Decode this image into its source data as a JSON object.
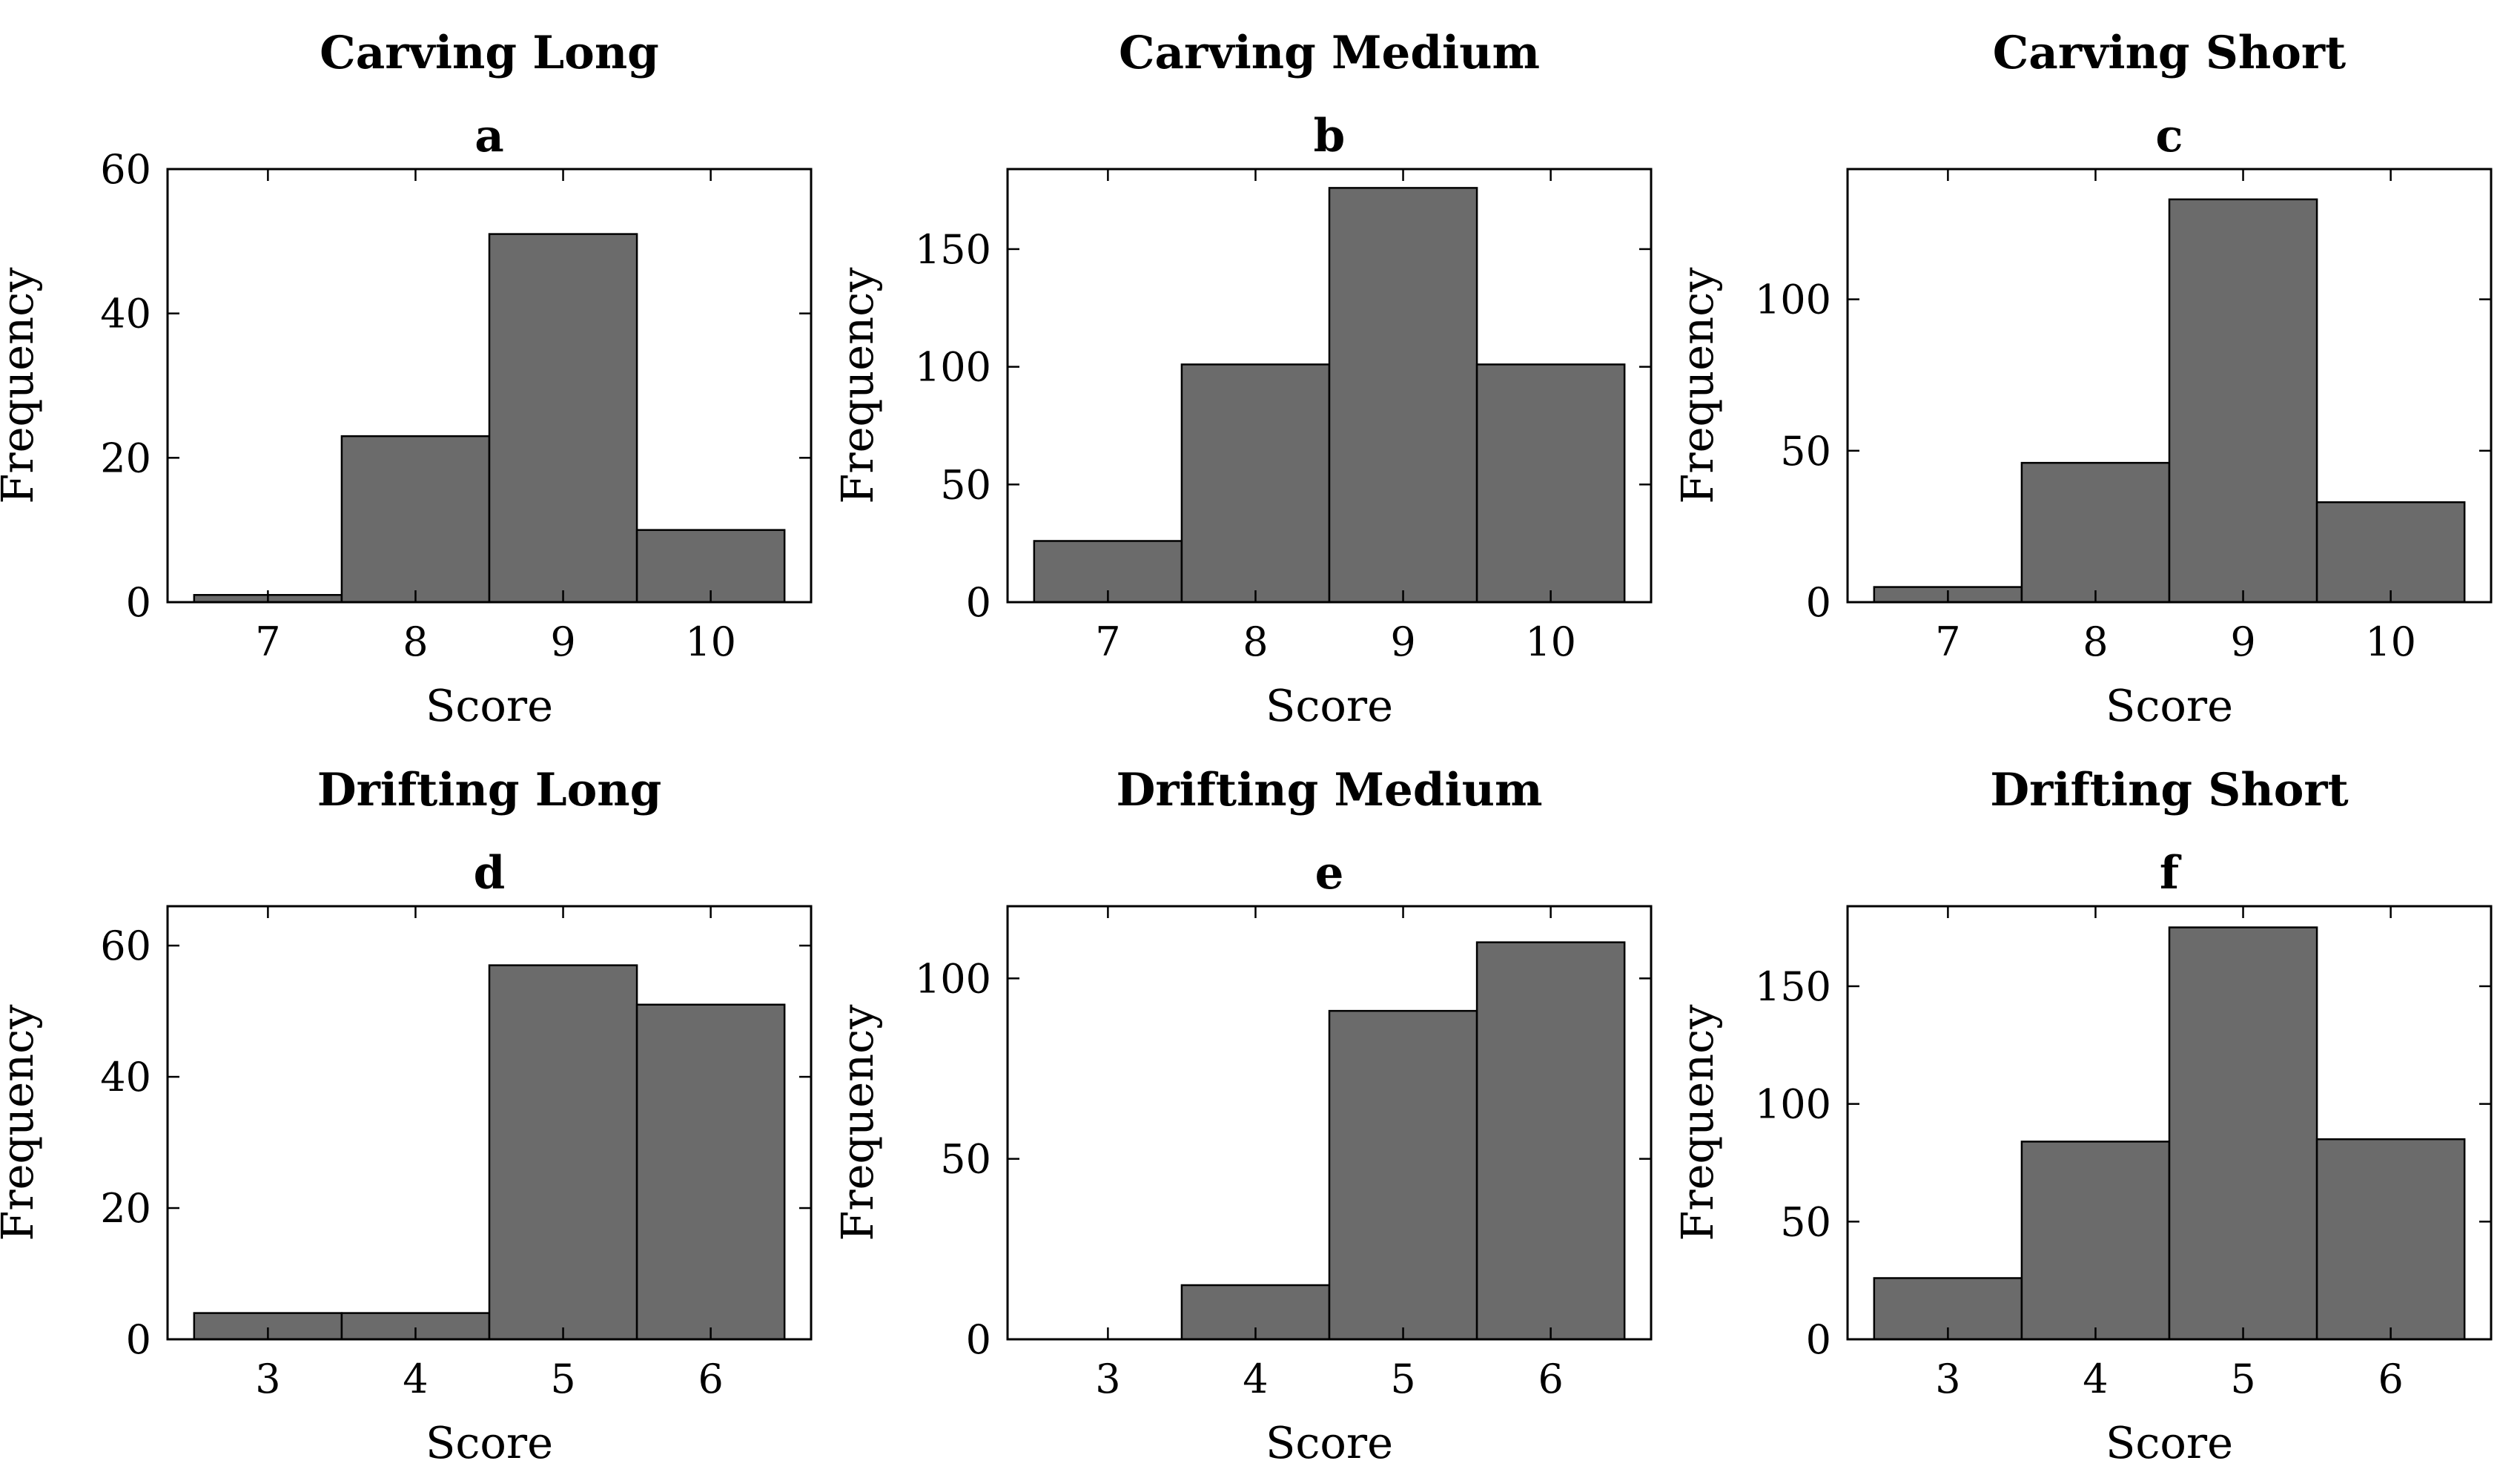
{
  "figure": {
    "background_color": "#ffffff",
    "text_color": "#000000",
    "bar_fill_color": "#6b6b6b",
    "bar_edge_color": "#000000",
    "axis_color": "#000000",
    "xlabel": "Score",
    "ylabel": "Frequency"
  },
  "chart_data": [
    {
      "type": "bar",
      "title": "Carving Long",
      "panel_letter": "a",
      "xlabel": "Score",
      "ylabel": "Frequency",
      "categories": [
        7,
        8,
        9,
        10
      ],
      "values": [
        1,
        23,
        51,
        10
      ],
      "bin_width": 1,
      "yticks": [
        0,
        20,
        40,
        60
      ],
      "ylim": [
        0,
        60
      ],
      "grid": "off",
      "legend": "none"
    },
    {
      "type": "bar",
      "title": "Carving Medium",
      "panel_letter": "b",
      "xlabel": "Score",
      "ylabel": "Frequency",
      "categories": [
        7,
        8,
        9,
        10
      ],
      "values": [
        26,
        101,
        176,
        101
      ],
      "bin_width": 1,
      "yticks": [
        0,
        50,
        100,
        150
      ],
      "ylim": [
        0,
        184
      ],
      "grid": "off",
      "legend": "none"
    },
    {
      "type": "bar",
      "title": "Carving Short",
      "panel_letter": "c",
      "xlabel": "Score",
      "ylabel": "Frequency",
      "categories": [
        7,
        8,
        9,
        10
      ],
      "values": [
        5,
        46,
        133,
        33
      ],
      "bin_width": 1,
      "yticks": [
        0,
        50,
        100
      ],
      "ylim": [
        0,
        143
      ],
      "grid": "off",
      "legend": "none"
    },
    {
      "type": "bar",
      "title": "Drifting Long",
      "panel_letter": "d",
      "xlabel": "Score",
      "ylabel": "Frequency",
      "categories": [
        3,
        4,
        5,
        6
      ],
      "values": [
        4,
        4,
        57,
        51
      ],
      "bin_width": 1,
      "yticks": [
        0,
        20,
        40,
        60
      ],
      "ylim": [
        0,
        66
      ],
      "grid": "off",
      "legend": "none"
    },
    {
      "type": "bar",
      "title": "Drifting Medium",
      "panel_letter": "e",
      "xlabel": "Score",
      "ylabel": "Frequency",
      "categories": [
        3,
        4,
        5,
        6
      ],
      "values": [
        0,
        15,
        91,
        110
      ],
      "bin_width": 1,
      "yticks": [
        0,
        50,
        100
      ],
      "ylim": [
        0,
        120
      ],
      "grid": "off",
      "legend": "none"
    },
    {
      "type": "bar",
      "title": "Drifting Short",
      "panel_letter": "f",
      "xlabel": "Score",
      "ylabel": "Frequency",
      "categories": [
        3,
        4,
        5,
        6
      ],
      "values": [
        26,
        84,
        175,
        85
      ],
      "bin_width": 1,
      "yticks": [
        0,
        50,
        100,
        150
      ],
      "ylim": [
        0,
        184
      ],
      "grid": "off",
      "legend": "none"
    }
  ]
}
